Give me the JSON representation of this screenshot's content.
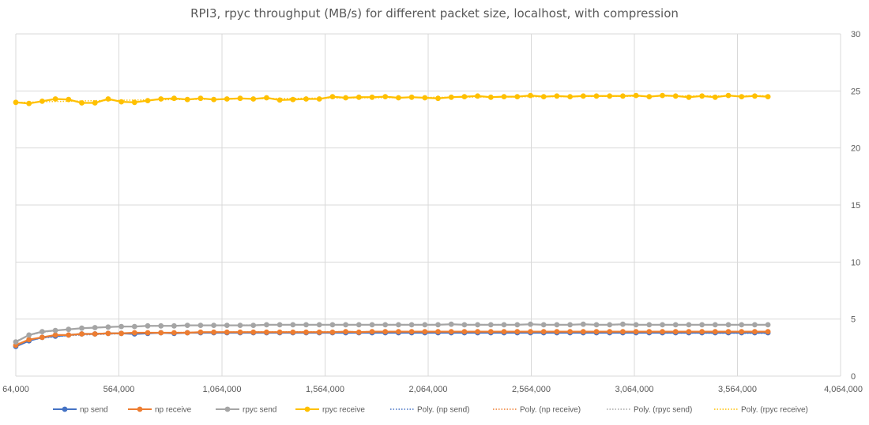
{
  "chart_data": {
    "type": "line",
    "title": "RPI3, rpyc throughput (MB/s) for different packet size, localhost, with compression",
    "xlabel": "",
    "ylabel": "",
    "x_axis": {
      "min": 64000,
      "max": 4064000,
      "ticks": [
        64000,
        564000,
        1064000,
        1564000,
        2064000,
        2564000,
        3064000,
        3564000,
        4064000
      ],
      "tick_labels": [
        "64,000",
        "564,000",
        "1,064,000",
        "1,564,000",
        "2,064,000",
        "2,564,000",
        "3,064,000",
        "3,564,000",
        "4,064,000"
      ]
    },
    "y_axis": {
      "side": "right",
      "min": 0,
      "max": 30,
      "ticks": [
        0,
        5,
        10,
        15,
        20,
        25,
        30
      ],
      "tick_labels": [
        "0",
        "5",
        "10",
        "15",
        "20",
        "25",
        "30"
      ]
    },
    "grid": true,
    "legend_position": "bottom",
    "x_start": 64000,
    "x_step": 64000,
    "series": [
      {
        "name": "np send",
        "color": "#4472C4",
        "values": [
          2.6,
          3.1,
          3.4,
          3.5,
          3.6,
          3.7,
          3.7,
          3.75,
          3.75,
          3.7,
          3.75,
          3.8,
          3.75,
          3.8,
          3.8,
          3.8,
          3.8,
          3.8,
          3.8,
          3.8,
          3.8,
          3.8,
          3.8,
          3.8,
          3.8,
          3.8,
          3.8,
          3.8,
          3.8,
          3.8,
          3.8,
          3.8,
          3.8,
          3.8,
          3.8,
          3.8,
          3.8,
          3.8,
          3.8,
          3.8,
          3.8,
          3.8,
          3.8,
          3.8,
          3.8,
          3.8,
          3.8,
          3.8,
          3.8,
          3.8,
          3.8,
          3.8,
          3.8,
          3.8,
          3.8,
          3.8,
          3.8,
          3.8
        ]
      },
      {
        "name": "np receive",
        "color": "#ED7D31",
        "values": [
          2.7,
          3.2,
          3.4,
          3.6,
          3.6,
          3.7,
          3.7,
          3.75,
          3.75,
          3.8,
          3.8,
          3.8,
          3.8,
          3.8,
          3.85,
          3.85,
          3.85,
          3.85,
          3.85,
          3.85,
          3.85,
          3.85,
          3.85,
          3.85,
          3.85,
          3.9,
          3.85,
          3.9,
          3.9,
          3.9,
          3.9,
          3.9,
          3.9,
          3.9,
          3.9,
          3.9,
          3.9,
          3.9,
          3.9,
          3.9,
          3.9,
          3.9,
          3.9,
          3.9,
          3.9,
          3.9,
          3.9,
          3.9,
          3.9,
          3.9,
          3.9,
          3.9,
          3.9,
          3.9,
          3.9,
          3.9,
          3.9,
          3.9
        ]
      },
      {
        "name": "rpyc send",
        "color": "#A5A5A5",
        "values": [
          3.0,
          3.6,
          3.9,
          4.0,
          4.1,
          4.2,
          4.25,
          4.3,
          4.35,
          4.35,
          4.4,
          4.4,
          4.4,
          4.45,
          4.45,
          4.45,
          4.45,
          4.45,
          4.45,
          4.5,
          4.5,
          4.5,
          4.5,
          4.5,
          4.5,
          4.5,
          4.5,
          4.5,
          4.5,
          4.5,
          4.5,
          4.5,
          4.5,
          4.55,
          4.5,
          4.5,
          4.5,
          4.5,
          4.5,
          4.55,
          4.5,
          4.5,
          4.5,
          4.55,
          4.5,
          4.5,
          4.55,
          4.5,
          4.5,
          4.5,
          4.5,
          4.5,
          4.5,
          4.5,
          4.5,
          4.5,
          4.5,
          4.5
        ]
      },
      {
        "name": "rpyc receive",
        "color": "#FFC000",
        "values": [
          24.0,
          23.9,
          24.1,
          24.3,
          24.25,
          23.95,
          23.95,
          24.3,
          24.05,
          24.0,
          24.15,
          24.3,
          24.35,
          24.25,
          24.35,
          24.25,
          24.3,
          24.35,
          24.3,
          24.4,
          24.2,
          24.25,
          24.3,
          24.3,
          24.5,
          24.4,
          24.45,
          24.45,
          24.5,
          24.4,
          24.45,
          24.4,
          24.35,
          24.45,
          24.5,
          24.55,
          24.45,
          24.5,
          24.5,
          24.6,
          24.5,
          24.55,
          24.5,
          24.55,
          24.55,
          24.55,
          24.55,
          24.6,
          24.5,
          24.6,
          24.55,
          24.45,
          24.55,
          24.45,
          24.6,
          24.5,
          24.55,
          24.5
        ]
      }
    ],
    "trendlines": [
      {
        "name": "Poly. (np send)",
        "color": "#4472C4",
        "style": "dotted"
      },
      {
        "name": "Poly. (np receive)",
        "color": "#ED7D31",
        "style": "dotted"
      },
      {
        "name": "Poly. (rpyc send)",
        "color": "#A5A5A5",
        "style": "dotted"
      },
      {
        "name": "Poly. (rpyc receive)",
        "color": "#FFC000",
        "style": "dotted"
      }
    ]
  }
}
